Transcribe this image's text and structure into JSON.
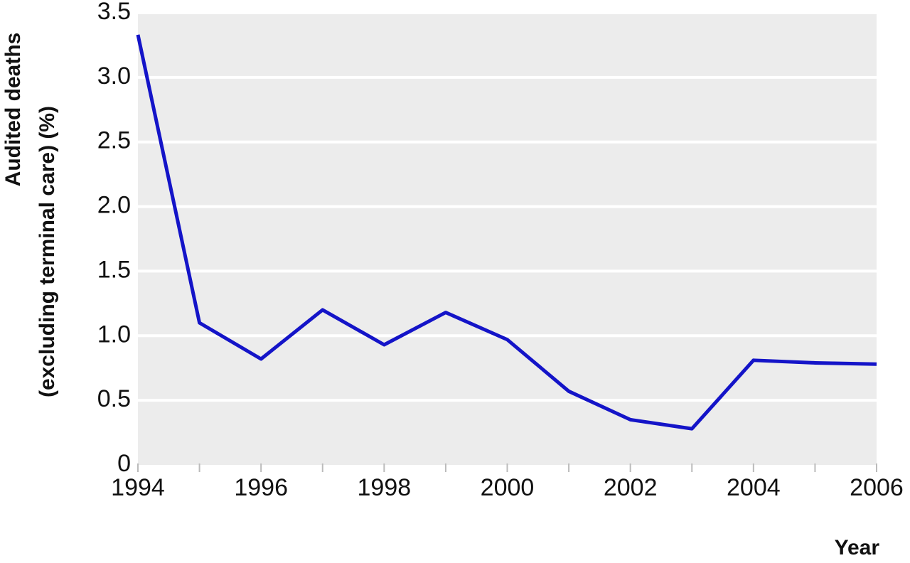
{
  "chart_data": {
    "type": "line",
    "ylabel": [
      "Audited deaths",
      "(excluding terminal care) (%)"
    ],
    "xlabel": "Year",
    "x": [
      1994,
      1995,
      1996,
      1997,
      1998,
      1999,
      2000,
      2001,
      2002,
      2003,
      2004,
      2005,
      2006
    ],
    "series": [
      {
        "color": "#1414c8",
        "values": [
          3.33,
          1.1,
          0.82,
          1.2,
          0.93,
          1.18,
          0.97,
          0.57,
          0.35,
          0.28,
          0.81,
          0.79,
          0.78
        ]
      }
    ],
    "xlim": [
      1994,
      2006
    ],
    "xticks": [
      1994,
      1996,
      1998,
      2000,
      2002,
      2004,
      2006
    ],
    "ylim": [
      0,
      3.5
    ],
    "yticks": [
      0,
      0.5,
      {
        "value": 1,
        "label": "1.0"
      },
      1.5,
      {
        "value": 2,
        "label": "2.0"
      },
      2.5,
      {
        "value": 3,
        "label": "3.0"
      },
      3.5
    ],
    "grid": true,
    "background": "#ececec"
  }
}
